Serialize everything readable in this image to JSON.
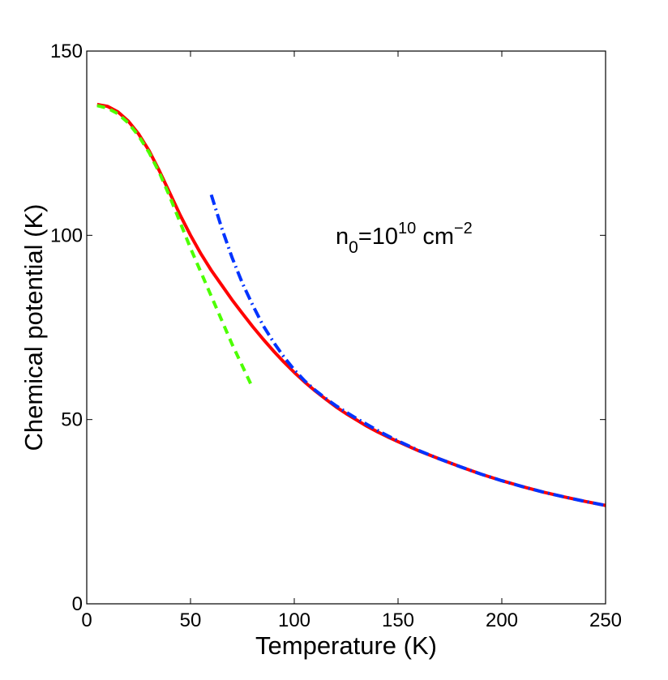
{
  "chart_data": {
    "type": "line",
    "title": "",
    "xlabel": "Temperature (K)",
    "ylabel": "Chemical potential (K)",
    "xlim": [
      0,
      250
    ],
    "ylim": [
      0,
      150
    ],
    "xticks": [
      0,
      50,
      100,
      150,
      200,
      250
    ],
    "yticks": [
      0,
      50,
      100,
      150
    ],
    "xtick_labels": [
      "0",
      "50",
      "100",
      "150",
      "200",
      "250"
    ],
    "ytick_labels": [
      "0",
      "50",
      "100",
      "150"
    ],
    "grid": false,
    "annotation": {
      "base": "n",
      "subscript": "0",
      "middle": "=10",
      "superscript1": "10",
      "unit": " cm",
      "superscript2": "−2"
    },
    "series": [
      {
        "style": "solid",
        "color": "#ff0000",
        "x": [
          5,
          10,
          15,
          20,
          25,
          30,
          35,
          40,
          45,
          50,
          55,
          60,
          65,
          70,
          75,
          80,
          85,
          90,
          95,
          100,
          105,
          110,
          115,
          120,
          125,
          130,
          135,
          140,
          145,
          150,
          160,
          170,
          180,
          190,
          200,
          210,
          220,
          230,
          240,
          250
        ],
        "y": [
          135.5,
          135.0,
          133.5,
          131.0,
          127.5,
          123.0,
          117.5,
          111.5,
          105.5,
          100.0,
          95.0,
          90.5,
          86.5,
          82.5,
          78.8,
          75.2,
          71.8,
          68.6,
          65.6,
          62.8,
          60.2,
          57.8,
          55.6,
          53.5,
          51.6,
          49.9,
          48.2,
          46.7,
          45.3,
          44.0,
          41.5,
          39.3,
          37.2,
          35.2,
          33.4,
          31.8,
          30.3,
          29.0,
          27.8,
          26.7
        ]
      },
      {
        "style": "dashed",
        "color": "#4cff00",
        "x": [
          5,
          10,
          15,
          20,
          25,
          30,
          35,
          40,
          45,
          50,
          55,
          60,
          65,
          70,
          75,
          80
        ],
        "y": [
          135.2,
          134.5,
          133.0,
          130.5,
          127.0,
          122.5,
          117.0,
          110.5,
          103.5,
          96.5,
          90.0,
          83.5,
          77.0,
          70.5,
          64.5,
          58.5
        ]
      },
      {
        "style": "dashdot",
        "color": "#0033ff",
        "x": [
          60,
          65,
          70,
          75,
          80,
          85,
          90,
          95,
          100,
          105,
          110,
          115,
          120,
          125,
          130,
          135,
          140,
          145,
          150,
          160,
          170,
          180,
          190,
          200,
          210,
          220,
          230,
          240,
          250
        ],
        "y": [
          111.0,
          102.0,
          94.0,
          87.0,
          81.0,
          75.5,
          71.0,
          67.0,
          63.5,
          60.5,
          58.0,
          55.8,
          53.8,
          52.0,
          50.3,
          48.7,
          47.1,
          45.6,
          44.2,
          41.6,
          39.3,
          37.2,
          35.2,
          33.4,
          31.8,
          30.3,
          29.0,
          27.8,
          26.7
        ]
      }
    ]
  }
}
